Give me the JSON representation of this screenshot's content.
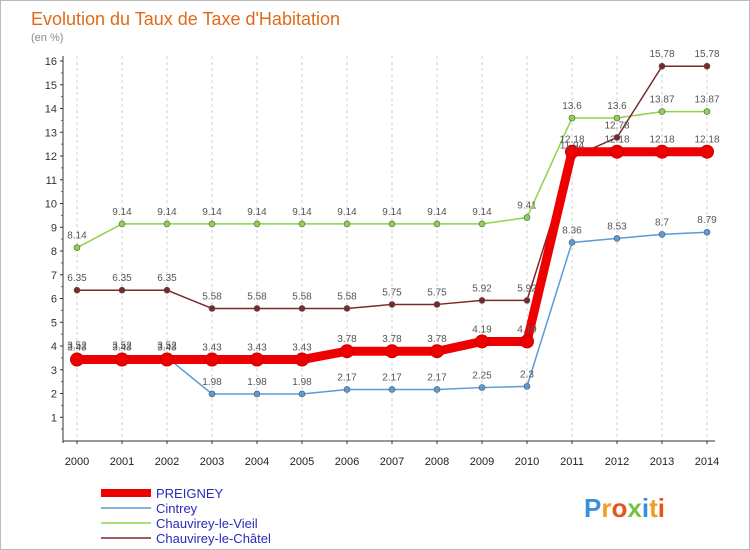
{
  "chart_data": {
    "type": "line",
    "title": "Evolution du Taux de Taxe d'Habitation",
    "ylabel": "(en %)",
    "xlabel": "",
    "ylim": [
      1,
      16
    ],
    "yticks": [
      1,
      2,
      3,
      4,
      5,
      6,
      7,
      8,
      9,
      10,
      11,
      12,
      13,
      14,
      15,
      16
    ],
    "x": [
      "2000",
      "2001",
      "2002",
      "2003",
      "2004",
      "2005",
      "2006",
      "2007",
      "2008",
      "2009",
      "2010",
      "2011",
      "2012",
      "2013",
      "2014"
    ],
    "grid": "vertical dashed",
    "legend_position": "bottom-left",
    "series": [
      {
        "name": "PREIGNEY",
        "color": "#ee0000",
        "style": "thick",
        "values": [
          3.43,
          3.43,
          3.43,
          3.43,
          3.43,
          3.43,
          3.78,
          3.78,
          3.78,
          4.19,
          4.19,
          12.18,
          12.18,
          12.18,
          12.18
        ]
      },
      {
        "name": "Cintrey",
        "color": "#5b9bd5",
        "style": "thin",
        "values": [
          3.52,
          3.52,
          3.52,
          1.98,
          1.98,
          1.98,
          2.17,
          2.17,
          2.17,
          2.25,
          2.3,
          8.36,
          8.53,
          8.7,
          8.79
        ]
      },
      {
        "name": "Chauvirey-le-Vieil",
        "color": "#8ed34a",
        "style": "thin",
        "values": [
          8.14,
          9.14,
          9.14,
          9.14,
          9.14,
          9.14,
          9.14,
          9.14,
          9.14,
          9.14,
          9.41,
          13.6,
          13.6,
          13.87,
          13.87
        ]
      },
      {
        "name": "Chauvirey-le-Châtel",
        "color": "#7a2a2a",
        "style": "thin",
        "values": [
          6.35,
          6.35,
          6.35,
          5.58,
          5.58,
          5.58,
          5.58,
          5.75,
          5.75,
          5.92,
          5.92,
          11.94,
          12.78,
          15.78,
          15.78
        ]
      }
    ]
  },
  "logo": {
    "text": "Proxiti",
    "colors": [
      "#3a8fd6",
      "#f0a020",
      "#e8541a",
      "#7ac143",
      "#3a8fd6",
      "#f0a020",
      "#e8541a"
    ]
  }
}
